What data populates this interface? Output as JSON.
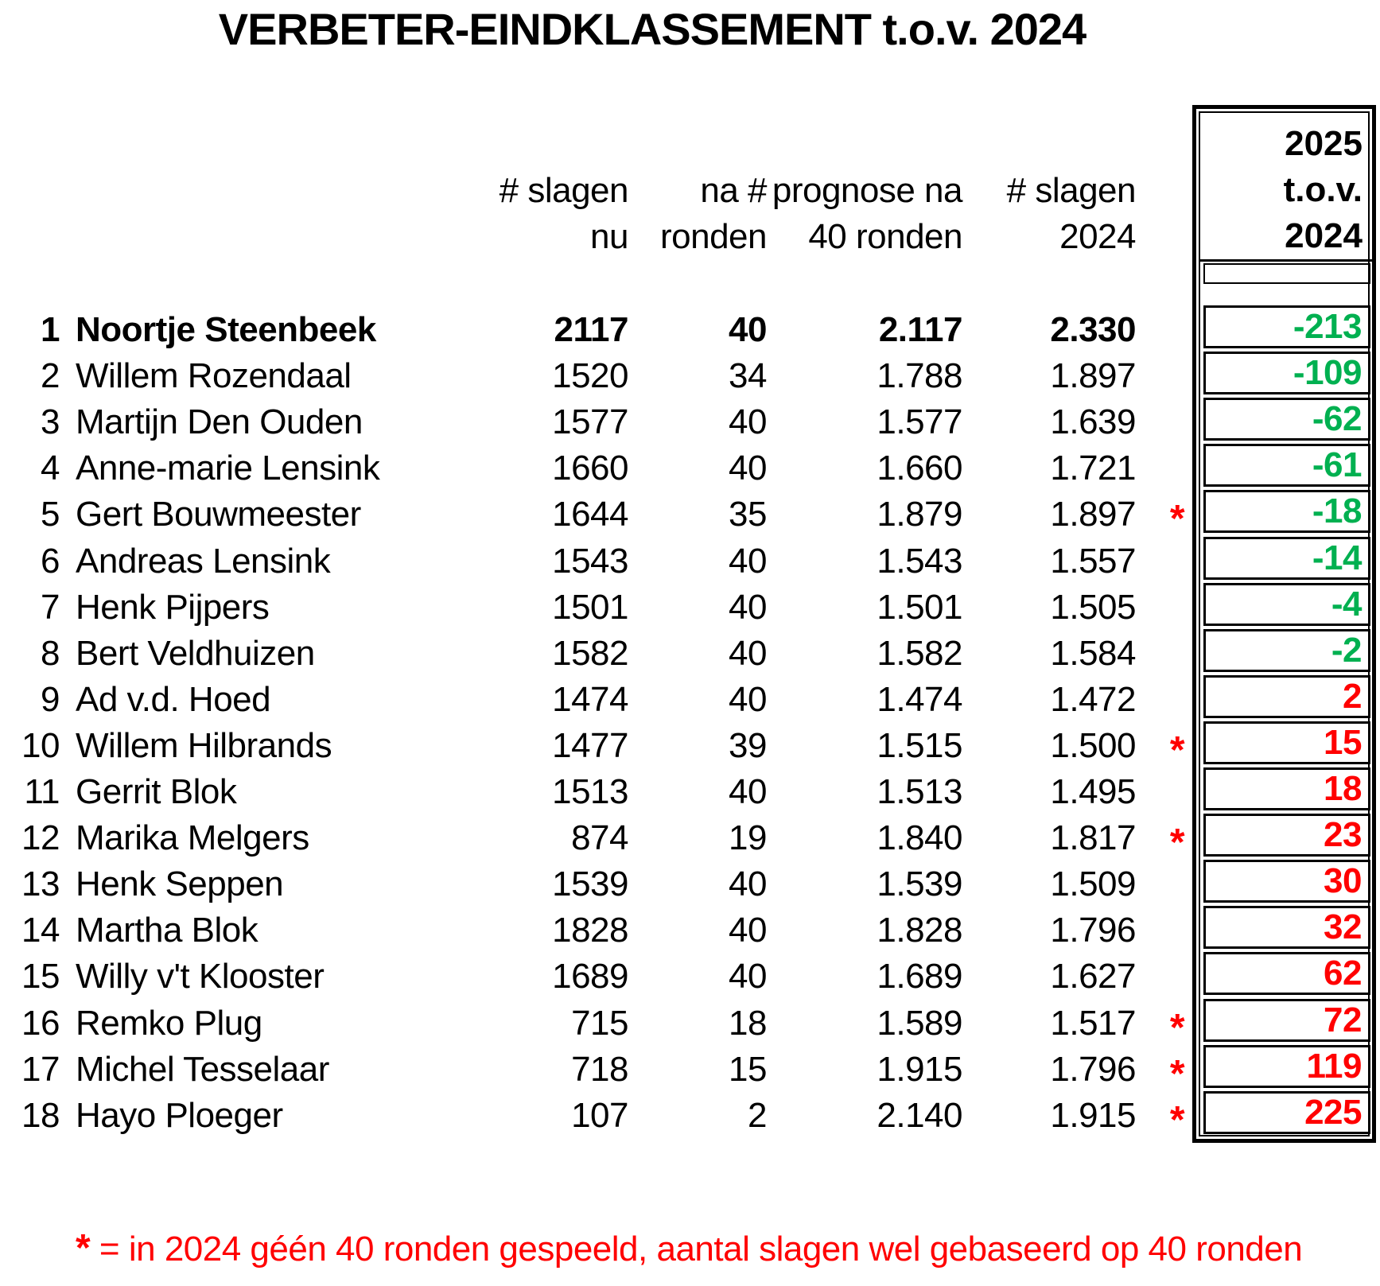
{
  "title": "VERBETER-EINDKLASSEMENT t.o.v. 2024",
  "header": {
    "columns": [
      {
        "line1": "# slagen",
        "line2": "nu"
      },
      {
        "line1": "na #",
        "line2": "ronden"
      },
      {
        "line1": "prognose na",
        "line2": "40 ronden"
      },
      {
        "line1": "# slagen",
        "line2": "2024"
      }
    ],
    "box": {
      "line1": "2025",
      "line2": "t.o.v.",
      "line3": "2024"
    }
  },
  "table": {
    "rows": [
      {
        "rank": "1",
        "name": "Noortje Steenbeek",
        "slagen_nu": "2117",
        "na_ronden": "40",
        "prognose_40": "2.117",
        "slagen_2024": "2.330",
        "star": "",
        "tov_2024": "-213",
        "bold": true
      },
      {
        "rank": "2",
        "name": "Willem Rozendaal",
        "slagen_nu": "1520",
        "na_ronden": "34",
        "prognose_40": "1.788",
        "slagen_2024": "1.897",
        "star": "",
        "tov_2024": "-109"
      },
      {
        "rank": "3",
        "name": "Martijn Den Ouden",
        "slagen_nu": "1577",
        "na_ronden": "40",
        "prognose_40": "1.577",
        "slagen_2024": "1.639",
        "star": "",
        "tov_2024": "-62"
      },
      {
        "rank": "4",
        "name": "Anne-marie Lensink",
        "slagen_nu": "1660",
        "na_ronden": "40",
        "prognose_40": "1.660",
        "slagen_2024": "1.721",
        "star": "",
        "tov_2024": "-61"
      },
      {
        "rank": "5",
        "name": "Gert Bouwmeester",
        "slagen_nu": "1644",
        "na_ronden": "35",
        "prognose_40": "1.879",
        "slagen_2024": "1.897",
        "star": "*",
        "tov_2024": "-18"
      },
      {
        "rank": "6",
        "name": "Andreas Lensink",
        "slagen_nu": "1543",
        "na_ronden": "40",
        "prognose_40": "1.543",
        "slagen_2024": "1.557",
        "star": "",
        "tov_2024": "-14"
      },
      {
        "rank": "7",
        "name": "Henk Pijpers",
        "slagen_nu": "1501",
        "na_ronden": "40",
        "prognose_40": "1.501",
        "slagen_2024": "1.505",
        "star": "",
        "tov_2024": "-4"
      },
      {
        "rank": "8",
        "name": "Bert Veldhuizen",
        "slagen_nu": "1582",
        "na_ronden": "40",
        "prognose_40": "1.582",
        "slagen_2024": "1.584",
        "star": "",
        "tov_2024": "-2"
      },
      {
        "rank": "9",
        "name": "Ad v.d. Hoed",
        "slagen_nu": "1474",
        "na_ronden": "40",
        "prognose_40": "1.474",
        "slagen_2024": "1.472",
        "star": "",
        "tov_2024": "2"
      },
      {
        "rank": "10",
        "name": "Willem Hilbrands",
        "slagen_nu": "1477",
        "na_ronden": "39",
        "prognose_40": "1.515",
        "slagen_2024": "1.500",
        "star": "*",
        "tov_2024": "15"
      },
      {
        "rank": "11",
        "name": "Gerrit Blok",
        "slagen_nu": "1513",
        "na_ronden": "40",
        "prognose_40": "1.513",
        "slagen_2024": "1.495",
        "star": "",
        "tov_2024": "18"
      },
      {
        "rank": "12",
        "name": "Marika Melgers",
        "slagen_nu": "874",
        "na_ronden": "19",
        "prognose_40": "1.840",
        "slagen_2024": "1.817",
        "star": "*",
        "tov_2024": "23"
      },
      {
        "rank": "13",
        "name": "Henk Seppen",
        "slagen_nu": "1539",
        "na_ronden": "40",
        "prognose_40": "1.539",
        "slagen_2024": "1.509",
        "star": "",
        "tov_2024": "30"
      },
      {
        "rank": "14",
        "name": "Martha Blok",
        "slagen_nu": "1828",
        "na_ronden": "40",
        "prognose_40": "1.828",
        "slagen_2024": "1.796",
        "star": "",
        "tov_2024": "32"
      },
      {
        "rank": "15",
        "name": "Willy v't Klooster",
        "slagen_nu": "1689",
        "na_ronden": "40",
        "prognose_40": "1.689",
        "slagen_2024": "1.627",
        "star": "",
        "tov_2024": "62"
      },
      {
        "rank": "16",
        "name": "Remko Plug",
        "slagen_nu": "715",
        "na_ronden": "18",
        "prognose_40": "1.589",
        "slagen_2024": "1.517",
        "star": "*",
        "tov_2024": "72"
      },
      {
        "rank": "17",
        "name": "Michel Tesselaar",
        "slagen_nu": "718",
        "na_ronden": "15",
        "prognose_40": "1.915",
        "slagen_2024": "1.796",
        "star": "*",
        "tov_2024": "119"
      },
      {
        "rank": "18",
        "name": "Hayo Ploeger",
        "slagen_nu": "107",
        "na_ronden": "2",
        "prognose_40": "2.140",
        "slagen_2024": "1.915",
        "star": "*",
        "tov_2024": "225"
      }
    ]
  },
  "footnote": {
    "marker": "*",
    "text": "= in 2024 géén 40 ronden gespeeld, aantal slagen wel gebaseerd op 40 ronden"
  },
  "colors": {
    "negative_green": "#00B050",
    "positive_red": "#FF0000",
    "star_red": "#FF0000",
    "footnote_red": "#FF0000"
  }
}
